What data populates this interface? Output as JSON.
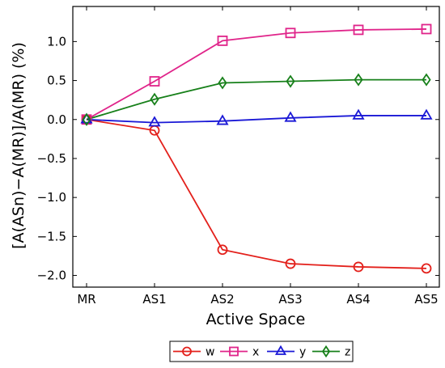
{
  "chart_data": {
    "type": "line",
    "title": "",
    "xlabel": "Active Space",
    "ylabel": "[A(ASn)−A(MR)]/A(MR) (%)",
    "categories": [
      "MR",
      "AS1",
      "AS2",
      "AS3",
      "AS4",
      "AS5"
    ],
    "ylim": [
      -2.15,
      1.45
    ],
    "yticks": [
      -2.0,
      -1.5,
      -1.0,
      -0.5,
      0.0,
      0.5,
      1.0
    ],
    "ytick_labels": [
      "−2.0",
      "−1.5",
      "−1.0",
      "−0.5",
      "0.0",
      "0.5",
      "1.0"
    ],
    "grid": false,
    "legend_position": "bottom-center",
    "series": [
      {
        "name": "w",
        "marker": "circle",
        "color": "#e3201b",
        "values": [
          0.0,
          -0.14,
          -1.67,
          -1.85,
          -1.89,
          -1.91
        ]
      },
      {
        "name": "x",
        "marker": "square",
        "color": "#e0248a",
        "values": [
          0.0,
          0.49,
          1.01,
          1.11,
          1.15,
          1.16
        ]
      },
      {
        "name": "y",
        "marker": "triangle",
        "color": "#1a18d6",
        "values": [
          0.0,
          -0.04,
          -0.02,
          0.02,
          0.05,
          0.05
        ]
      },
      {
        "name": "z",
        "marker": "diamond",
        "color": "#17801a",
        "values": [
          0.0,
          0.26,
          0.47,
          0.49,
          0.51,
          0.51
        ]
      }
    ]
  }
}
